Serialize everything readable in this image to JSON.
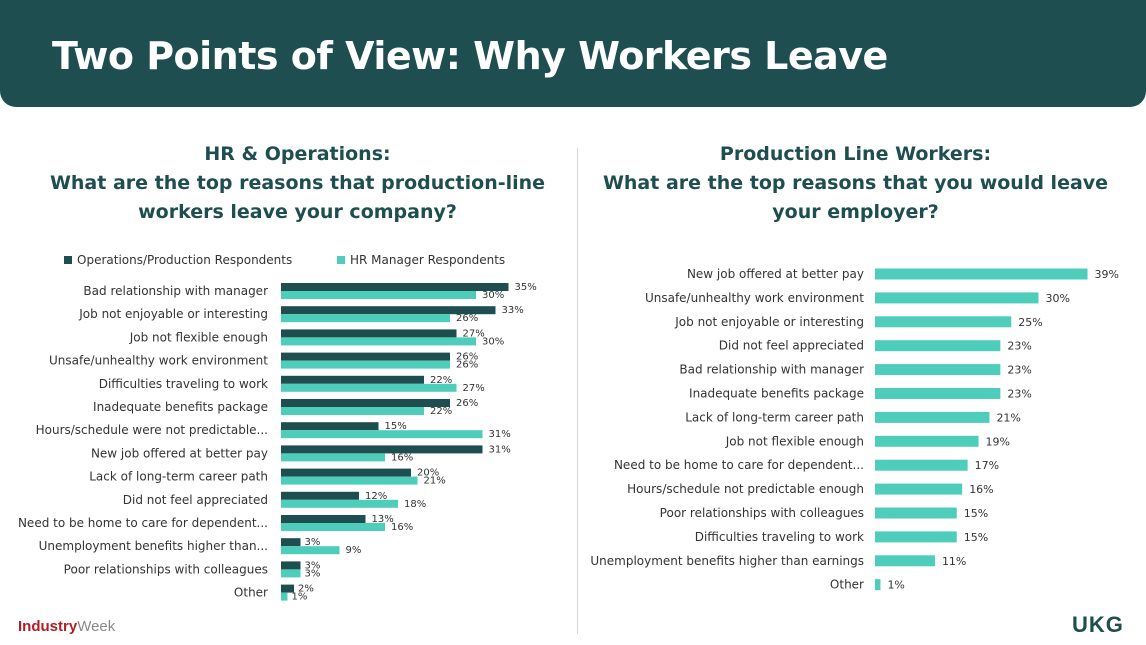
{
  "header": {
    "title": "Two Points of View: Why Workers Leave"
  },
  "left_panel": {
    "title_lines": [
      "HR & Operations:",
      "What are the top reasons that production-line",
      "workers leave your company?"
    ]
  },
  "right_panel": {
    "title_lines": [
      "Production Line Workers:",
      "What are the top reasons that you would leave",
      "your employer?"
    ]
  },
  "logos": {
    "industryweek_primary": "Industry",
    "industryweek_secondary": "Week",
    "ukg": "UKG"
  },
  "colors": {
    "dark": "#1e4e4f",
    "teal": "#4ecdbb",
    "header_bg": "#1e4e4f"
  },
  "chart_data": [
    {
      "type": "bar",
      "orientation": "horizontal",
      "title": "HR & Operations: What are the top reasons that production-line workers leave your company?",
      "categories": [
        "Bad relationship with manager",
        "Job not enjoyable or interesting",
        "Job not flexible enough",
        "Unsafe/unhealthy work environment",
        "Difficulties traveling to work",
        "Inadequate benefits package",
        "Hours/schedule were not predictable...",
        "New job offered at better pay",
        "Lack of long-term career path",
        "Did not feel appreciated",
        "Need to be home to care for dependent...",
        "Unemployment benefits higher than...",
        "Poor relationships with colleagues",
        "Other"
      ],
      "series": [
        {
          "name": "Operations/Production Respondents",
          "color": "#1e4e4f",
          "values": [
            35,
            33,
            27,
            26,
            22,
            26,
            15,
            31,
            20,
            12,
            13,
            3,
            3,
            2
          ]
        },
        {
          "name": "HR Manager Respondents",
          "color": "#4ecdbb",
          "values": [
            30,
            26,
            30,
            26,
            27,
            22,
            31,
            16,
            21,
            18,
            16,
            9,
            3,
            1
          ]
        }
      ],
      "unit": "%",
      "legend": "top"
    },
    {
      "type": "bar",
      "orientation": "horizontal",
      "title": "Production Line Workers: What are the top reasons that you would leave your employer?",
      "categories": [
        "New job offered at better pay",
        "Unsafe/unhealthy work environment",
        "Job not enjoyable or interesting",
        "Did not feel appreciated",
        "Bad relationship with manager",
        "Inadequate benefits package",
        "Lack of long-term career path",
        "Job not flexible enough",
        "Need to be home to care for dependent...",
        "Hours/schedule not predictable enough",
        "Poor relationships with colleagues",
        "Difficulties traveling to work",
        "Unemployment benefits higher than earnings",
        "Other"
      ],
      "series": [
        {
          "name": "Production Line Workers",
          "color": "#4ecdbb",
          "values": [
            39,
            30,
            25,
            23,
            23,
            23,
            21,
            19,
            17,
            16,
            15,
            15,
            11,
            1
          ]
        }
      ],
      "unit": "%"
    }
  ]
}
